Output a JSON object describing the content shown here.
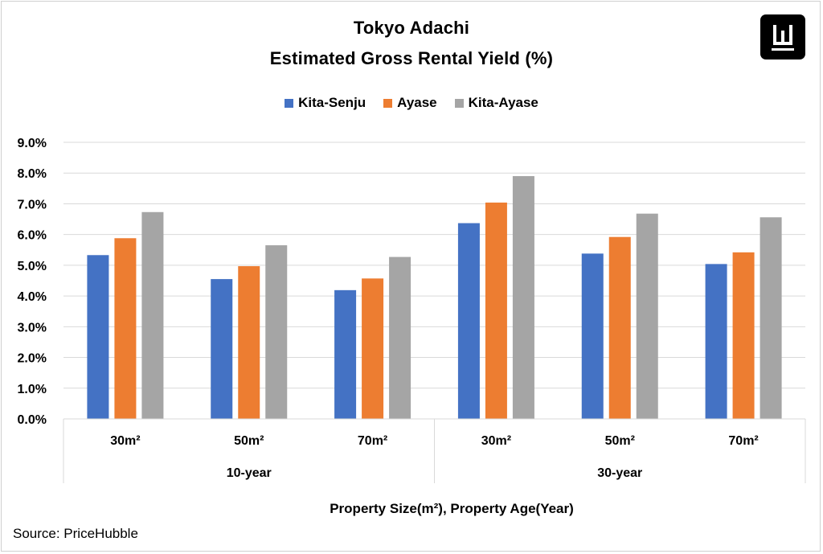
{
  "logo": {
    "icon": "w-logo-icon"
  },
  "colors": {
    "kita_senju": "#4472C4",
    "ayase": "#ED7D31",
    "kita_ayase": "#A5A5A5",
    "grid": "#D9D9D9"
  },
  "source": "Source: PriceHubble",
  "chart_data": {
    "type": "bar",
    "title": "Tokyo Adachi",
    "subtitle": "Estimated Gross Rental Yield (%)",
    "xlabel": "Property Size(m²), Property Age(Year)",
    "ylabel": "",
    "ylim": [
      0,
      9
    ],
    "yticks": [
      "0.0%",
      "1.0%",
      "2.0%",
      "3.0%",
      "4.0%",
      "5.0%",
      "6.0%",
      "7.0%",
      "8.0%",
      "9.0%"
    ],
    "grid": true,
    "legend_position": "top",
    "categories": [
      "30m²",
      "50m²",
      "70m²",
      "30m²",
      "50m²",
      "70m²"
    ],
    "groups": [
      {
        "label": "10-year",
        "categories": [
          "30m²",
          "50m²",
          "70m²"
        ]
      },
      {
        "label": "30-year",
        "categories": [
          "30m²",
          "50m²",
          "70m²"
        ]
      }
    ],
    "series": [
      {
        "name": "Kita-Senju",
        "color": "#4472C4",
        "values": [
          5.33,
          4.55,
          4.19,
          6.37,
          5.38,
          5.04
        ]
      },
      {
        "name": "Ayase",
        "color": "#ED7D31",
        "values": [
          5.88,
          4.97,
          4.57,
          7.04,
          5.92,
          5.42
        ]
      },
      {
        "name": "Kita-Ayase",
        "color": "#A5A5A5",
        "values": [
          6.73,
          5.65,
          5.27,
          7.9,
          6.68,
          6.56
        ]
      }
    ]
  }
}
